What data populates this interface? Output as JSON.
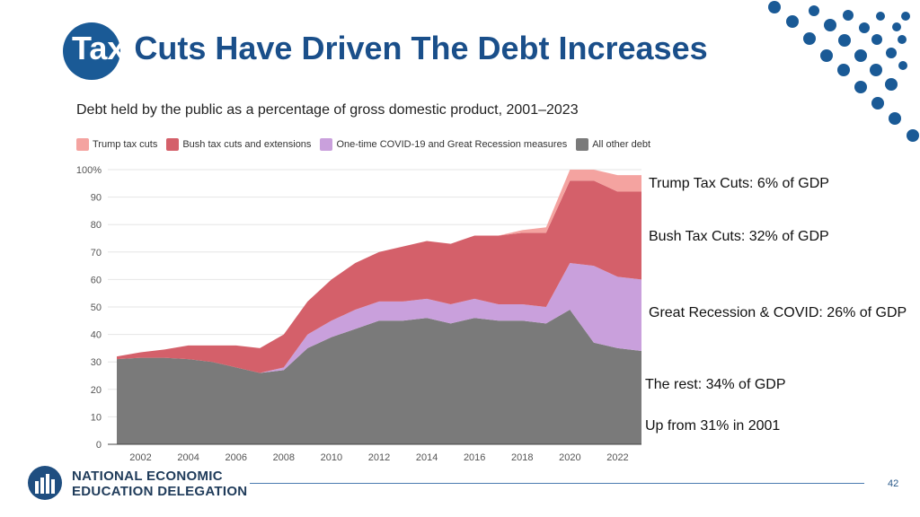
{
  "slide": {
    "title_part1": "Tax",
    "title_part2": " Cuts Have Driven The Debt Increases",
    "page_number": "42"
  },
  "footer": {
    "org_line1": "NATIONAL ECONOMIC",
    "org_line2": "EDUCATION DELEGATION"
  },
  "colors": {
    "brand": "#1a5a96",
    "trump": "#f4a3a0",
    "bush": "#d4606a",
    "covid": "#c9a0dc",
    "other": "#7a7a7a"
  },
  "annotations": {
    "trump": "Trump Tax Cuts: 6% of GDP",
    "bush": "Bush Tax Cuts: 32% of GDP",
    "recession": "Great Recession & COVID: 26% of GDP",
    "rest": "The rest: 34% of GDP",
    "up": "Up from 31% in 2001"
  },
  "chart_data": {
    "type": "area",
    "title": "Debt held by the public as a percentage of gross domestic product, 2001–2023",
    "xlabel": "",
    "ylabel": "",
    "ylim": [
      0,
      100
    ],
    "yticks": [
      0,
      10,
      20,
      30,
      40,
      50,
      60,
      70,
      80,
      90,
      100
    ],
    "ytick_labels": [
      "0",
      "10",
      "20",
      "30",
      "40",
      "50",
      "60",
      "70",
      "80",
      "90",
      "100%"
    ],
    "xticks": [
      2002,
      2004,
      2006,
      2008,
      2010,
      2012,
      2014,
      2016,
      2018,
      2020,
      2022
    ],
    "x": [
      2001,
      2002,
      2003,
      2004,
      2005,
      2006,
      2007,
      2008,
      2009,
      2010,
      2011,
      2012,
      2013,
      2014,
      2015,
      2016,
      2017,
      2018,
      2019,
      2020,
      2021,
      2022,
      2023
    ],
    "stacked": true,
    "series": [
      {
        "name": "All other debt",
        "key": "other",
        "values": [
          31,
          31.5,
          31.5,
          31,
          30,
          28,
          26,
          27,
          35,
          39,
          42,
          45,
          45,
          46,
          44,
          46,
          45,
          45,
          44,
          49,
          37,
          35,
          34
        ]
      },
      {
        "name": "One-time COVID-19 and Great Recession measures",
        "key": "covid",
        "values": [
          0,
          0,
          0,
          0,
          0,
          0,
          0,
          1,
          5,
          6,
          7,
          7,
          7,
          7,
          7,
          7,
          6,
          6,
          6,
          17,
          28,
          26,
          26
        ]
      },
      {
        "name": "Bush tax cuts and extensions",
        "key": "bush",
        "values": [
          1,
          2,
          3,
          5,
          6,
          8,
          9,
          12,
          12,
          15,
          17,
          18,
          20,
          21,
          22,
          23,
          25,
          26,
          27,
          30,
          31,
          31,
          32
        ]
      },
      {
        "name": "Trump tax cuts",
        "key": "trump",
        "values": [
          0,
          0,
          0,
          0,
          0,
          0,
          0,
          0,
          0,
          0,
          0,
          0,
          0,
          0,
          0,
          0,
          0,
          1,
          2,
          4,
          5,
          6,
          6
        ]
      }
    ],
    "legend": [
      "Trump tax cuts",
      "Bush tax cuts and extensions",
      "One-time COVID-19 and Great Recession measures",
      "All other debt"
    ]
  }
}
